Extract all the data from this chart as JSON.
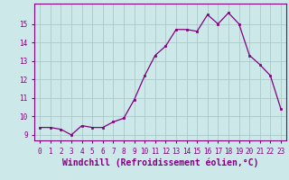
{
  "x": [
    0,
    1,
    2,
    3,
    4,
    5,
    6,
    7,
    8,
    9,
    10,
    11,
    12,
    13,
    14,
    15,
    16,
    17,
    18,
    19,
    20,
    21,
    22,
    23
  ],
  "y": [
    9.4,
    9.4,
    9.3,
    9.0,
    9.5,
    9.4,
    9.4,
    9.7,
    9.9,
    10.9,
    12.2,
    13.3,
    13.8,
    14.7,
    14.7,
    14.6,
    15.5,
    15.0,
    15.6,
    15.0,
    13.3,
    12.8,
    12.2,
    10.4
  ],
  "line_color": "#800080",
  "marker": "s",
  "marker_size": 2,
  "bg_color": "#cce8e8",
  "grid_color": "#aacaca",
  "xlabel": "Windchill (Refroidissement éolien,°C)",
  "xlabel_fontsize": 7,
  "ylim": [
    8.7,
    16.1
  ],
  "xlim": [
    -0.5,
    23.5
  ],
  "yticks": [
    9,
    10,
    11,
    12,
    13,
    14,
    15
  ],
  "xticks": [
    0,
    1,
    2,
    3,
    4,
    5,
    6,
    7,
    8,
    9,
    10,
    11,
    12,
    13,
    14,
    15,
    16,
    17,
    18,
    19,
    20,
    21,
    22,
    23
  ],
  "tick_fontsize": 5.5,
  "tick_color": "#800080",
  "spine_color": "#800080",
  "xlabel_bold": true
}
